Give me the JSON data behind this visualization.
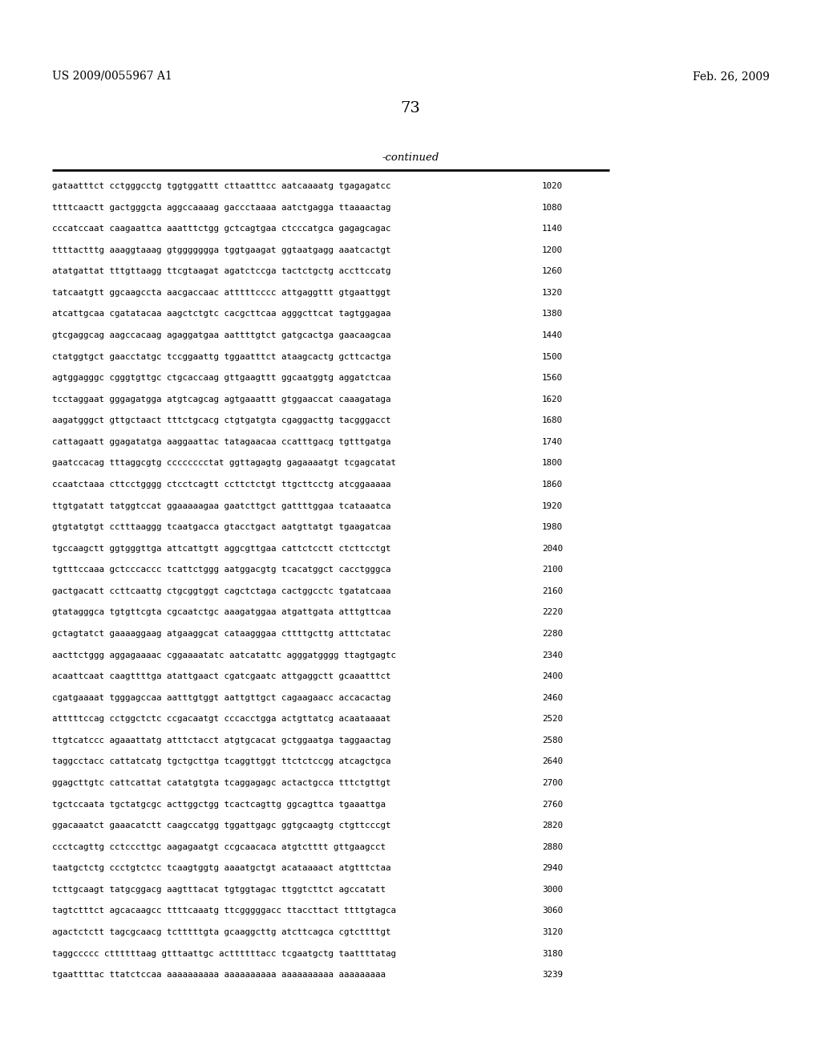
{
  "header_left": "US 2009/0055967 A1",
  "header_right": "Feb. 26, 2009",
  "page_number": "73",
  "continued_label": "-continued",
  "background_color": "#ffffff",
  "text_color": "#000000",
  "sequences": [
    [
      "gataatttct cctgggcctg tggtggattt cttaatttcc aatcaaaatg tgagagatcc",
      "1020"
    ],
    [
      "ttttcaactt gactgggcta aggccaaaag gaccctaaaa aatctgagga ttaaaactag",
      "1080"
    ],
    [
      "cccatccaat caagaattca aaatttctgg gctcagtgaa ctcccatgca gagagcagac",
      "1140"
    ],
    [
      "ttttactttg aaaggtaaag gtggggggga tggtgaagat ggtaatgagg aaatcactgt",
      "1200"
    ],
    [
      "atatgattat tttgttaagg ttcgtaagat agatctccga tactctgctg accttccatg",
      "1260"
    ],
    [
      "tatcaatgtt ggcaagccta aacgaccaac atttttcccc attgaggttt gtgaattggt",
      "1320"
    ],
    [
      "atcattgcaa cgatatacaa aagctctgtc cacgcttcaa agggcttcat tagtggagaa",
      "1380"
    ],
    [
      "gtcgaggcag aagccacaag agaggatgaa aattttgtct gatgcactga gaacaagcaa",
      "1440"
    ],
    [
      "ctatggtgct gaacctatgc tccggaattg tggaatttct ataagcactg gcttcactga",
      "1500"
    ],
    [
      "agtggagggc cgggtgttgc ctgcaccaag gttgaagttt ggcaatggtg aggatctcaa",
      "1560"
    ],
    [
      "tcctaggaat gggagatgga atgtcagcag agtgaaattt gtggaaccat caaagataga",
      "1620"
    ],
    [
      "aagatgggct gttgctaact tttctgcacg ctgtgatgta cgaggacttg tacgggacct",
      "1680"
    ],
    [
      "cattagaatt ggagatatga aaggaattac tatagaacaa ccatttgacg tgtttgatga",
      "1740"
    ],
    [
      "gaatccacag tttaggcgtg cccccccctat ggttagagtg gagaaaatgt tcgagcatat",
      "1800"
    ],
    [
      "ccaatctaaa cttcctgggg ctcctcagtt ccttctctgt ttgcttcctg atcggaaaaa",
      "1860"
    ],
    [
      "ttgtgatatt tatggtccat ggaaaaagaa gaatcttgct gattttggaa tcataaatca",
      "1920"
    ],
    [
      "gtgtatgtgt cctttaaggg tcaatgacca gtacctgact aatgttatgt tgaagatcaa",
      "1980"
    ],
    [
      "tgccaagctt ggtgggttga attcattgtt aggcgttgaa cattctcctt ctcttcctgt",
      "2040"
    ],
    [
      "tgtttccaaa gctcccaccc tcattctggg aatggacgtg tcacatggct cacctgggca",
      "2100"
    ],
    [
      "gactgacatt ccttcaattg ctgcggtggt cagctctaga cactggcctc tgatatcaaa",
      "2160"
    ],
    [
      "gtatagggca tgtgttcgta cgcaatctgc aaagatggaa atgattgata atttgttcaa",
      "2220"
    ],
    [
      "gctagtatct gaaaaggaag atgaaggcat cataagggaa cttttgcttg atttctatac",
      "2280"
    ],
    [
      "aacttctggg aggagaaaac cggaaaatatc aatcatattc agggatgggg ttagtgagtc",
      "2340"
    ],
    [
      "acaattcaat caagttttga atattgaact cgatcgaatc attgaggctt gcaaatttct",
      "2400"
    ],
    [
      "cgatgaaaat tgggagccaa aatttgtggt aattgttgct cagaagaacc accacactag",
      "2460"
    ],
    [
      "atttttccag cctggctctc ccgacaatgt cccacctgga actgttatcg acaataaaat",
      "2520"
    ],
    [
      "ttgtcatccc agaaattatg atttctacct atgtgcacat gctggaatga taggaactag",
      "2580"
    ],
    [
      "taggcctacc cattatcatg tgctgcttga tcaggttggt ttctctccgg atcagctgca",
      "2640"
    ],
    [
      "ggagcttgtc cattcattat catatgtgta tcaggagagc actactgcca tttctgttgt",
      "2700"
    ],
    [
      "tgctccaata tgctatgcgc acttggctgg tcactcagttg ggcagttca tgaaattga",
      "2760"
    ],
    [
      "ggacaaatct gaaacatctt caagccatgg tggattgagc ggtgcaagtg ctgttcccgt",
      "2820"
    ],
    [
      "ccctcagttg cctcccttgc aagagaatgt ccgcaacaca atgtctttt gttgaagcct",
      "2880"
    ],
    [
      "taatgctctg ccctgtctcc tcaagtggtg aaaatgctgt acataaaact atgtttctaa",
      "2940"
    ],
    [
      "tcttgcaagt tatgcggacg aagtttacat tgtggtagac ttggtcttct agccatatt",
      "3000"
    ],
    [
      "tagtctttct agcacaagcc ttttcaaatg ttcgggggacc ttaccttact ttttgtagca",
      "3060"
    ],
    [
      "agactctctt tagcgcaacg tctttttgta gcaaggcttg atcttcagca cgtcttttgt",
      "3120"
    ],
    [
      "taggccccc cttttttaag gtttaattgc acttttttacc tcgaatgctg taattttatag",
      "3180"
    ],
    [
      "tgaattttac ttatctccaa aaaaaaaaaa aaaaaaaaaa aaaaaaaaaa aaaaaaaaa",
      "3239"
    ]
  ]
}
